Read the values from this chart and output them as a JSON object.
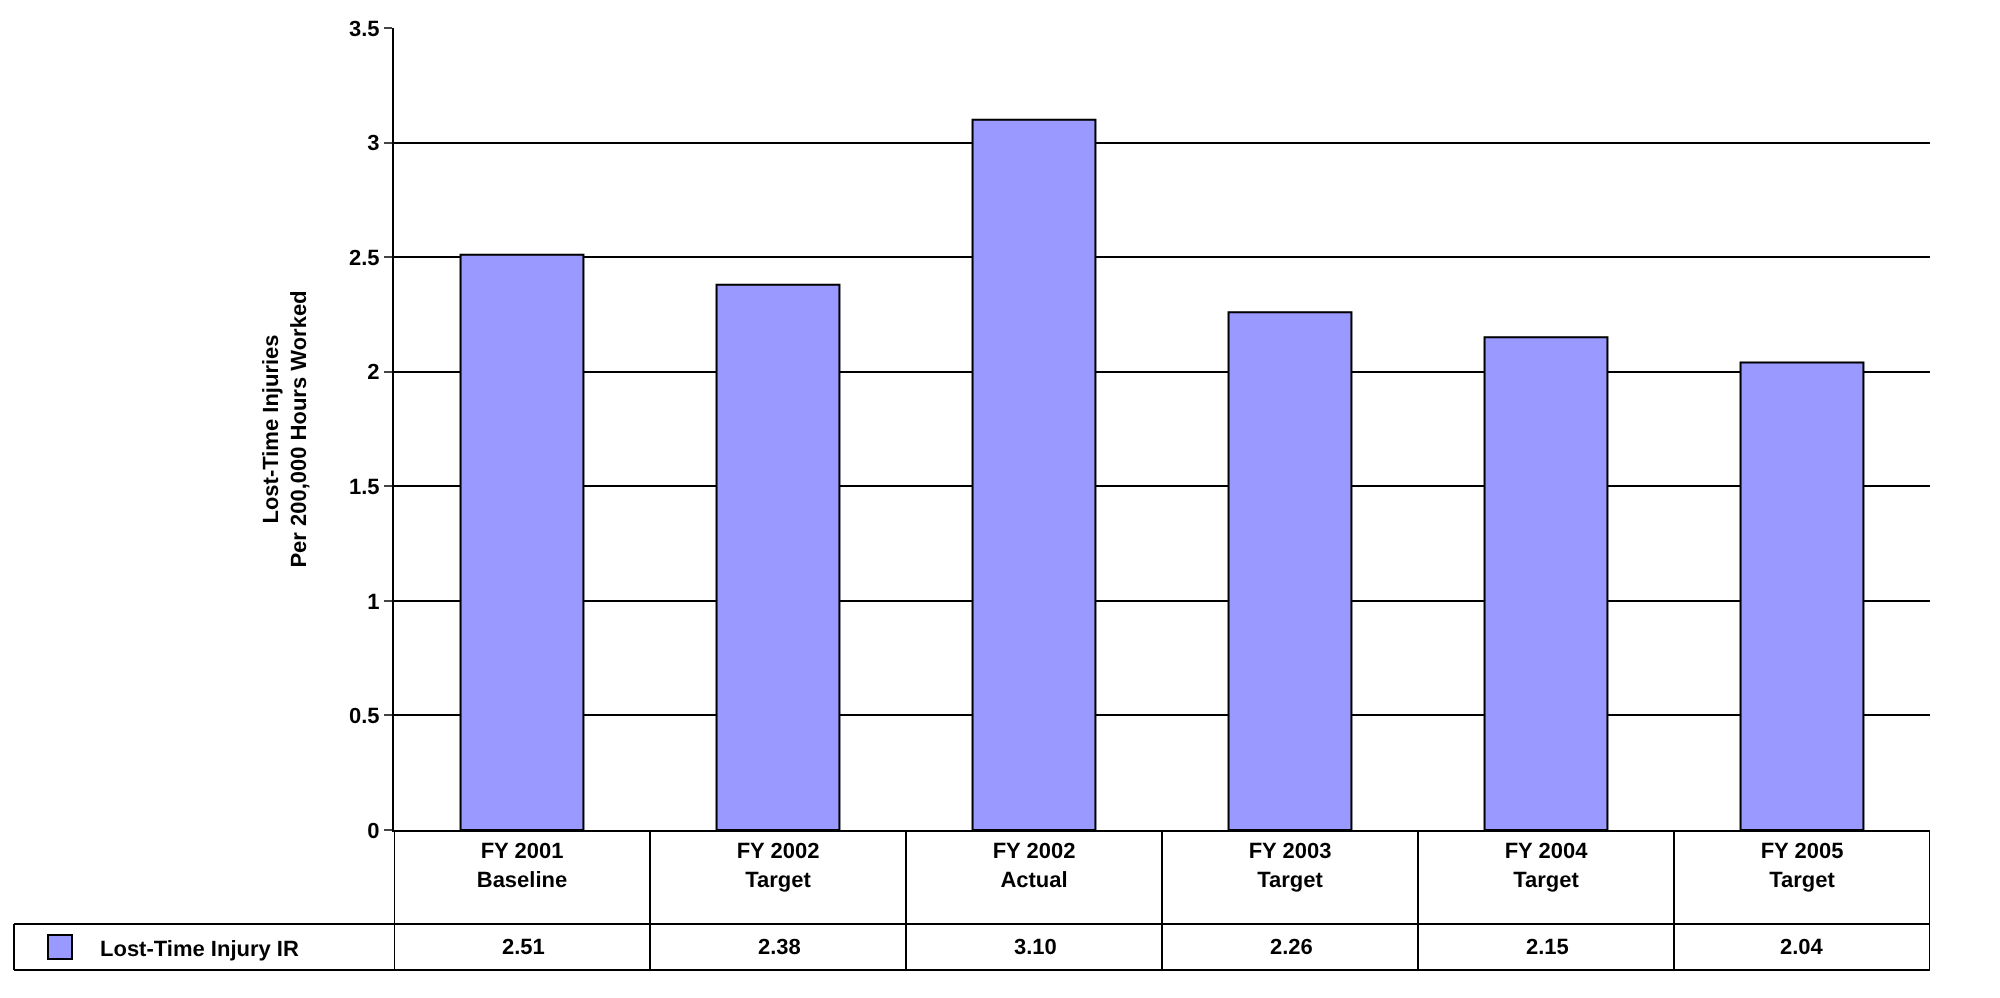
{
  "chart_data": {
    "type": "bar",
    "ylabel": "Lost-Time Injuries\nPer 200,000 Hours Worked",
    "categories": [
      "FY 2001\nBaseline",
      "FY 2002\nTarget",
      "FY 2002\nActual",
      "FY 2003\nTarget",
      "FY 2004\nTarget",
      "FY 2005\nTarget"
    ],
    "series": [
      {
        "name": "Lost-Time Injury IR",
        "color": "#9999ff",
        "values": [
          2.51,
          2.38,
          3.1,
          2.26,
          2.15,
          2.04
        ],
        "value_labels": [
          "2.51",
          "2.38",
          "3.10",
          "2.26",
          "2.15",
          "2.04"
        ]
      }
    ],
    "ylim": [
      0,
      3.5
    ],
    "yticks": [
      0,
      0.5,
      1,
      1.5,
      2,
      2.5,
      3,
      3.5
    ],
    "grid": "y",
    "legend": "bottom left"
  }
}
